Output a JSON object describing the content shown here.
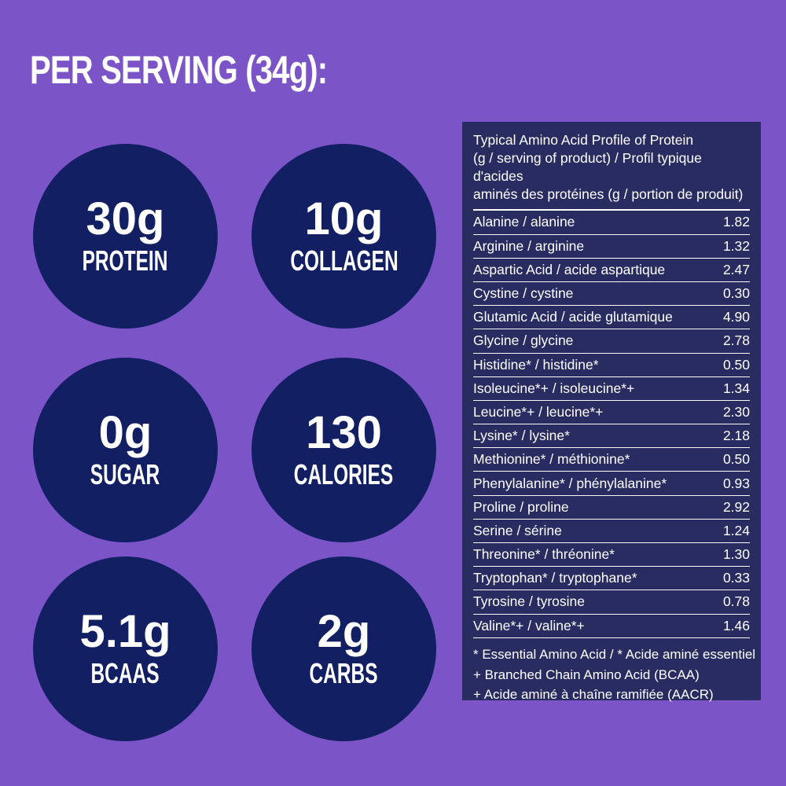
{
  "heading": "PER SERVING (34g):",
  "colors": {
    "background": "#7B55C8",
    "circle": "#121F63",
    "table_background": "#282C60",
    "text": "#FFFFFF"
  },
  "stats": [
    {
      "value": "30g",
      "label": "PROTEIN"
    },
    {
      "value": "10g",
      "label": "COLLAGEN"
    },
    {
      "value": "0g",
      "label": "SUGAR"
    },
    {
      "value": "130",
      "label": "CALORIES"
    },
    {
      "value": "5.1g",
      "label": "BCAAS"
    },
    {
      "value": "2g",
      "label": "CARBS"
    }
  ],
  "amino_table": {
    "title_lines": [
      "Typical Amino Acid Profile of Protein",
      "(g / serving of product) / Profil typique d'acides",
      "aminés des protéines (g / portion de produit)"
    ],
    "rows": [
      {
        "name": "Alanine / alanine",
        "value": "1.82"
      },
      {
        "name": "Arginine / arginine",
        "value": "1.32"
      },
      {
        "name": "Aspartic Acid / acide aspartique",
        "value": "2.47"
      },
      {
        "name": "Cystine / cystine",
        "value": "0.30"
      },
      {
        "name": "Glutamic Acid / acide glutamique",
        "value": "4.90"
      },
      {
        "name": "Glycine / glycine",
        "value": "2.78"
      },
      {
        "name": "Histidine* / histidine*",
        "value": "0.50"
      },
      {
        "name": "Isoleucine*+ / isoleucine*+",
        "value": "1.34"
      },
      {
        "name": "Leucine*+ / leucine*+",
        "value": "2.30"
      },
      {
        "name": "Lysine* / lysine*",
        "value": "2.18"
      },
      {
        "name": "Methionine* / méthionine*",
        "value": "0.50"
      },
      {
        "name": "Phenylalanine* / phénylalanine*",
        "value": "0.93"
      },
      {
        "name": "Proline / proline",
        "value": "2.92"
      },
      {
        "name": "Serine / sérine",
        "value": "1.24"
      },
      {
        "name": "Threonine* / thréonine*",
        "value": "1.30"
      },
      {
        "name": "Tryptophan* / tryptophane*",
        "value": "0.33"
      },
      {
        "name": "Tyrosine / tyrosine",
        "value": "0.78"
      },
      {
        "name": "Valine*+ / valine*+",
        "value": "1.46"
      }
    ],
    "footnotes": [
      "* Essential Amino Acid / * Acide aminé essentiel",
      "+ Branched Chain Amino Acid (BCAA)",
      "+ Acide aminé à chaîne ramifiée (AACR)"
    ]
  }
}
